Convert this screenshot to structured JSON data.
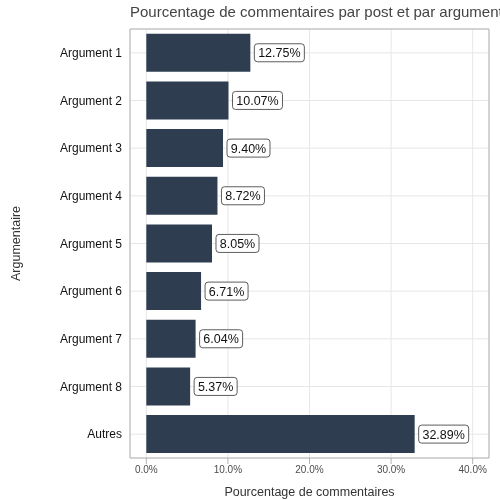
{
  "chart_data": {
    "type": "bar",
    "orientation": "horizontal",
    "title": "Pourcentage de commentaires par post et par argumentaire",
    "x_label": "Pourcentage de commentaires",
    "y_label": "Argumentaire",
    "categories": [
      "Argument 1",
      "Argument 2",
      "Argument 3",
      "Argument 4",
      "Argument 5",
      "Argument 6",
      "Argument 7",
      "Argument 8",
      "Autres"
    ],
    "values": [
      12.75,
      10.07,
      9.4,
      8.72,
      8.05,
      6.71,
      6.04,
      5.37,
      32.89
    ],
    "value_labels": [
      "12.75%",
      "10.07%",
      "9.40%",
      "8.72%",
      "8.05%",
      "6.71%",
      "6.04%",
      "5.37%",
      "32.89%"
    ],
    "color": "#2e3e50",
    "xlim": [
      -2,
      42
    ],
    "xticks": [
      {
        "value": 0,
        "label": "0.0%"
      },
      {
        "value": 10,
        "label": "10.0%"
      },
      {
        "value": 20,
        "label": "20.0%"
      },
      {
        "value": 30,
        "label": "30.0%"
      },
      {
        "value": 40,
        "label": "40.0%"
      }
    ],
    "grid": true,
    "data_labels": true
  }
}
